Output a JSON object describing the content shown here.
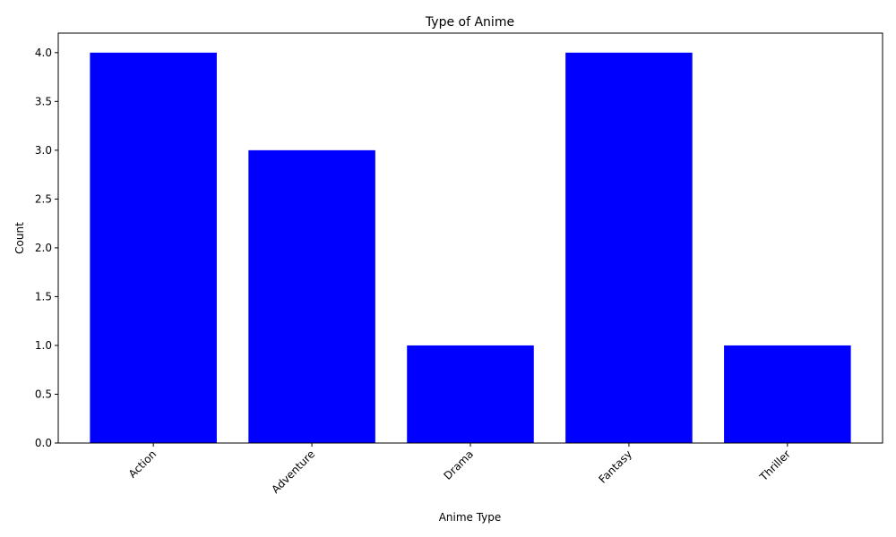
{
  "chart_data": {
    "type": "bar",
    "title": "Type of Anime",
    "xlabel": "Anime Type",
    "ylabel": "Count",
    "categories": [
      "Action",
      "Adventure",
      "Drama",
      "Fantasy",
      "Thriller"
    ],
    "values": [
      4,
      3,
      1,
      4,
      1
    ],
    "ylim": [
      0,
      4.2
    ],
    "yticks": [
      0.0,
      0.5,
      1.0,
      1.5,
      2.0,
      2.5,
      3.0,
      3.5,
      4.0
    ],
    "ytick_labels": [
      "0.0",
      "0.5",
      "1.0",
      "1.5",
      "2.0",
      "2.5",
      "3.0",
      "3.5",
      "4.0"
    ],
    "xtick_rotation_deg": 45,
    "grid": false,
    "legend": "none",
    "bar_color": "#0000ff"
  }
}
